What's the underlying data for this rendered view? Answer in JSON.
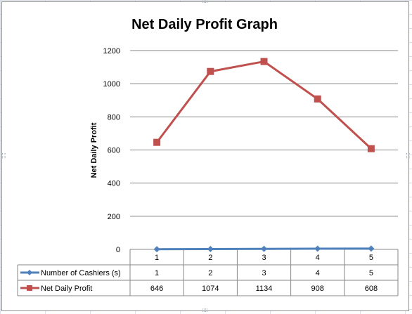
{
  "chart_data": {
    "type": "line",
    "title": "Net Daily Profit Graph",
    "xlabel": "",
    "ylabel": "Net Daily Profit",
    "categories": [
      "1",
      "2",
      "3",
      "4",
      "5"
    ],
    "series": [
      {
        "name": "Number of Cashiers (s)",
        "values": [
          1,
          2,
          3,
          4,
          5
        ],
        "color": "#4f81bd",
        "marker": "diamond"
      },
      {
        "name": "Net Daily Profit",
        "values": [
          646,
          1074,
          1134,
          908,
          608
        ],
        "color": "#c0504d",
        "marker": "square"
      }
    ],
    "ylim": [
      0,
      1200
    ],
    "yticks": [
      "0",
      "200",
      "400",
      "600",
      "800",
      "1000",
      "1200"
    ],
    "grid": true,
    "legend": "data-table-bottom",
    "data_table": {
      "rows": [
        {
          "label": "Number of Cashiers (s)",
          "cells": [
            "1",
            "2",
            "3",
            "4",
            "5"
          ]
        },
        {
          "label": "Net Daily Profit",
          "cells": [
            "646",
            "1074",
            "1134",
            "908",
            "608"
          ]
        }
      ]
    }
  }
}
